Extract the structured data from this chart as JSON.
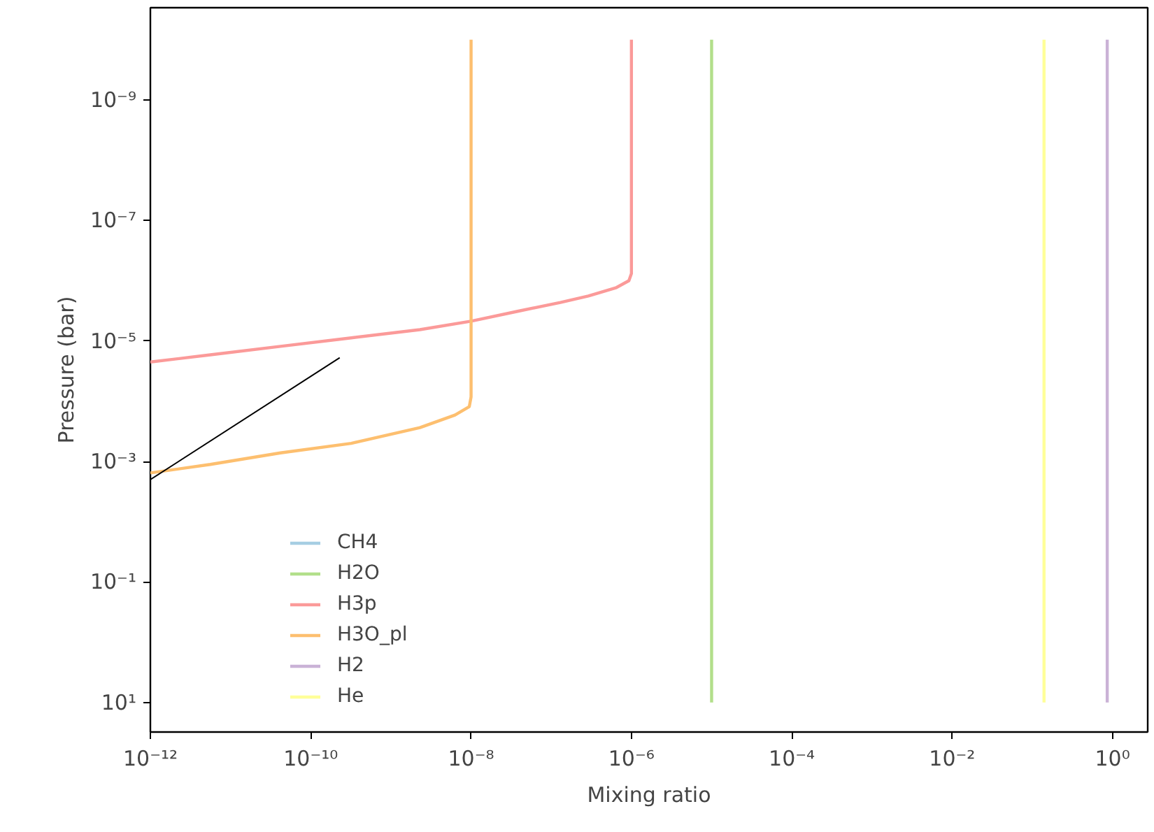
{
  "chart_data": {
    "type": "line",
    "xlabel": "Mixing ratio",
    "ylabel": "Pressure (bar)",
    "log": "xy",
    "grid": false,
    "legend": "bottom left",
    "marker": "none",
    "line_style": "solid",
    "xlim": [
      1e-12,
      2.75
    ],
    "ylim": [
      30.9,
      2.95e-11
    ],
    "xticks": [
      {
        "value": 1e-12,
        "label": "10⁻¹²"
      },
      {
        "value": 1e-10,
        "label": "10⁻¹⁰"
      },
      {
        "value": 1e-08,
        "label": "10⁻⁸"
      },
      {
        "value": 1e-06,
        "label": "10⁻⁶"
      },
      {
        "value": 0.0001,
        "label": "10⁻⁴"
      },
      {
        "value": 0.01,
        "label": "10⁻²"
      },
      {
        "value": 1,
        "label": "10⁰"
      }
    ],
    "yticks": [
      {
        "value": 1e-09,
        "label": "10⁻⁹"
      },
      {
        "value": 1e-07,
        "label": "10⁻⁷"
      },
      {
        "value": 1e-05,
        "label": "10⁻⁵"
      },
      {
        "value": 0.001,
        "label": "10⁻³"
      },
      {
        "value": 0.1,
        "label": "10⁻¹"
      },
      {
        "value": 10,
        "label": "10¹"
      }
    ],
    "series": [
      {
        "name": "CH4",
        "color": "#a6cee3",
        "x": [
          null,
          null
        ],
        "values": [
          null,
          null
        ]
      },
      {
        "name": "H2O",
        "color": "#b2df8a",
        "x": [
          1e-05,
          1e-05
        ],
        "values": [
          1e-10,
          10
        ]
      },
      {
        "name": "H3p",
        "color": "#fb9a99",
        "x": [
          1e-06,
          1e-06,
          9.3e-07,
          6.5e-07,
          2.9e-07,
          1.3e-07,
          3.9e-08,
          1e-08,
          2.3e-09,
          3.2e-10,
          4.2e-11,
          5.6e-12,
          1e-12
        ],
        "values": [
          1e-10,
          7.6e-07,
          1e-06,
          1.3e-06,
          1.8e-06,
          2.3e-06,
          3.2e-06,
          4.7e-06,
          6.5e-06,
          8.9e-06,
          1.23e-05,
          1.7e-05,
          2.24e-05
        ]
      },
      {
        "name": "H3O_pl",
        "color": "#fdbf6f",
        "x": [
          1e-08,
          1e-08,
          9.5e-09,
          6.3e-09,
          2.3e-09,
          3.2e-10,
          4.2e-11,
          5.6e-12,
          1e-12
        ],
        "values": [
          1e-10,
          8.5e-05,
          0.000123,
          0.00017,
          0.000275,
          0.0005,
          0.00072,
          0.00112,
          0.00155
        ]
      },
      {
        "name": "H2",
        "color": "#cab2d6",
        "x": [
          0.86,
          0.86
        ],
        "values": [
          1e-10,
          10
        ]
      },
      {
        "name": "He",
        "color": "#ffff99",
        "x": [
          0.14,
          0.14
        ],
        "values": [
          1e-10,
          10
        ]
      },
      {
        "type": "line",
        "color": "#000000",
        "x": [
          1e-12,
          2.3e-10
        ],
        "values": [
          0.002,
          1.9e-05
        ]
      }
    ]
  }
}
